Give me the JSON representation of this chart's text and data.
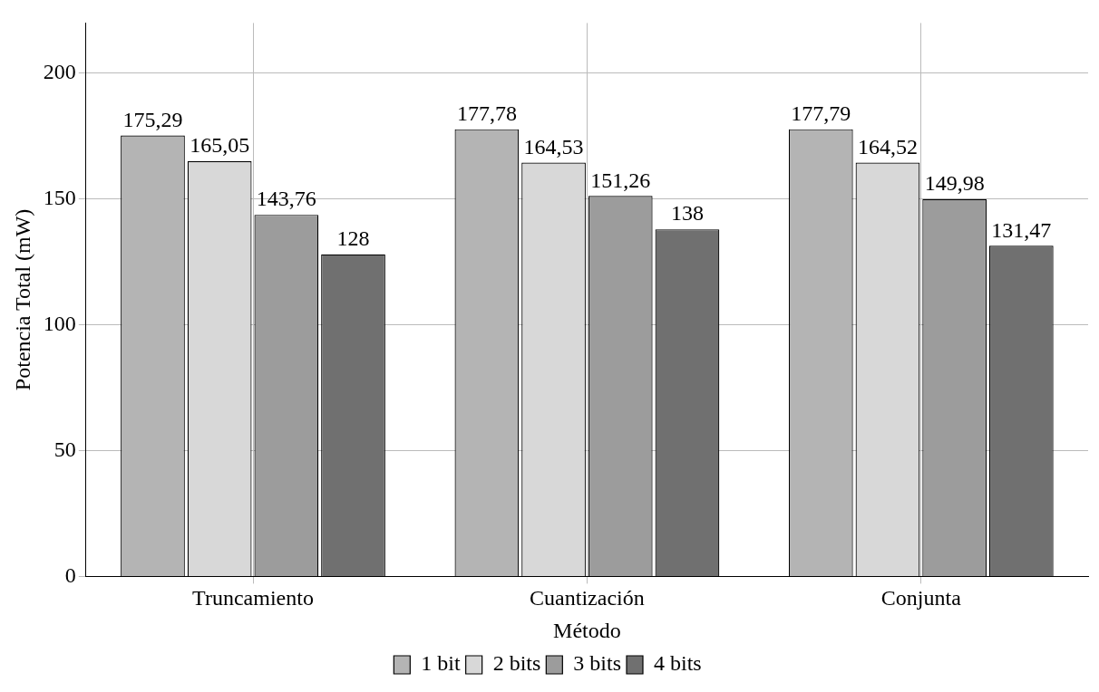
{
  "chart_data": {
    "type": "bar",
    "xlabel": "Método",
    "ylabel": "Potencia Total (mW)",
    "categories": [
      "Truncamiento",
      "Cuantización",
      "Conjunta"
    ],
    "series": [
      {
        "name": "1 bit",
        "color": "#b4b4b4",
        "values": [
          175.29,
          177.78,
          177.79
        ],
        "value_labels": [
          "175,29",
          "177,78",
          "177,79"
        ]
      },
      {
        "name": "2 bits",
        "color": "#d8d8d8",
        "values": [
          165.05,
          164.53,
          164.52
        ],
        "value_labels": [
          "165,05",
          "164,53",
          "164,52"
        ]
      },
      {
        "name": "3 bits",
        "color": "#9c9c9c",
        "values": [
          143.76,
          151.26,
          149.98
        ],
        "value_labels": [
          "143,76",
          "151,26",
          "149,98"
        ]
      },
      {
        "name": "4 bits",
        "color": "#707070",
        "values": [
          128,
          138,
          131.47
        ],
        "value_labels": [
          "128",
          "138",
          "131,47"
        ]
      }
    ],
    "ylim": [
      0,
      220
    ],
    "yticks": [
      0,
      50,
      100,
      150,
      200
    ],
    "grid": true,
    "legend": "bottom"
  }
}
